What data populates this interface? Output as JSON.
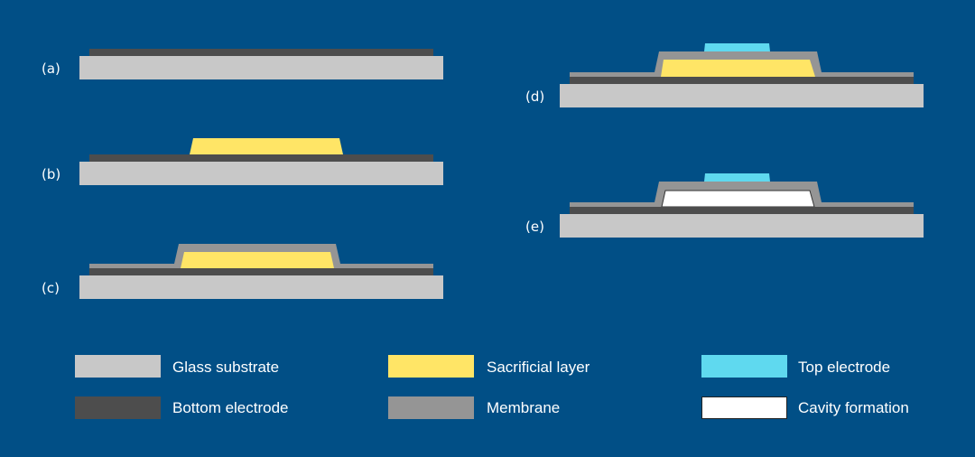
{
  "colors": {
    "background": "#014f86",
    "glass_substrate": "#c8c8c8",
    "bottom_electrode": "#4d4d4d",
    "sacrificial_layer": "#ffe566",
    "membrane": "#959595",
    "top_electrode": "#5fd9ef",
    "cavity": "#ffffff"
  },
  "steps": [
    {
      "label": "(a)"
    },
    {
      "label": "(b)"
    },
    {
      "label": "(c)"
    },
    {
      "label": "(d)"
    },
    {
      "label": "(e)"
    }
  ],
  "legend": [
    {
      "label": "Glass substrate"
    },
    {
      "label": "Bottom electrode"
    },
    {
      "label": "Sacrificial layer"
    },
    {
      "label": "Membrane"
    },
    {
      "label": "Top electrode"
    },
    {
      "label": "Cavity formation"
    }
  ]
}
